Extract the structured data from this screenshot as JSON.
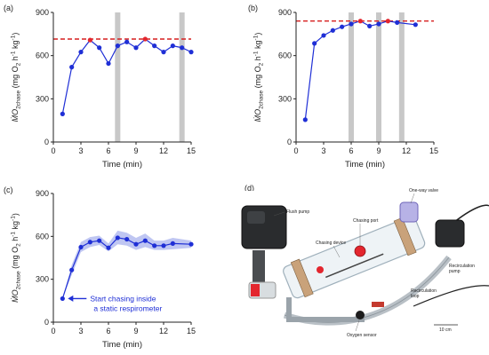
{
  "chart_data": [
    {
      "panel_label": "(a)",
      "type": "line",
      "xlabel": "Time (min)",
      "ylabel_main": "ṀO",
      "ylabel_sub": "2chase",
      "ylabel_units_1": " (mg O",
      "ylabel_units_sub": "2",
      "ylabel_units_2": " h",
      "ylabel_units_sup1": "-1",
      "ylabel_units_3": " kg",
      "ylabel_units_sup2": "-1",
      "ylabel_units_4": ")",
      "xlim": [
        0,
        15
      ],
      "ylim": [
        0,
        900
      ],
      "xticks": [
        0,
        3,
        6,
        9,
        12,
        15
      ],
      "yticks": [
        0,
        300,
        600,
        900
      ],
      "x_tick_labels": [
        "0",
        "3",
        "6",
        "9",
        "12",
        "15"
      ],
      "y_tick_labels": [
        "0",
        "300",
        "600",
        "900"
      ],
      "line_color": "#1f2fd6",
      "peak_color": "#e3262e",
      "shade_color": "#c8c8c8",
      "ref_line": 715,
      "shaded_x": [
        7,
        14
      ],
      "series": [
        {
          "x": [
            1,
            2,
            3,
            4,
            5,
            6,
            7,
            8,
            9,
            10,
            11,
            12,
            13,
            14,
            15
          ],
          "y": [
            195,
            520,
            625,
            708,
            655,
            545,
            668,
            695,
            655,
            715,
            668,
            625,
            668,
            655,
            625
          ],
          "peak_index": [
            3,
            9
          ]
        }
      ]
    },
    {
      "panel_label": "(b)",
      "type": "line",
      "xlabel": "Time (min)",
      "ylabel_main": "ṀO",
      "ylabel_sub": "2chase",
      "ylabel_units_1": " (mg O",
      "ylabel_units_sub": "2",
      "ylabel_units_2": " h",
      "ylabel_units_sup1": "-1",
      "ylabel_units_3": " kg",
      "ylabel_units_sup2": "-1",
      "ylabel_units_4": ")",
      "xlim": [
        0,
        15
      ],
      "ylim": [
        0,
        900
      ],
      "xticks": [
        0,
        3,
        6,
        9,
        12,
        15
      ],
      "yticks": [
        0,
        300,
        600,
        900
      ],
      "x_tick_labels": [
        "0",
        "3",
        "6",
        "9",
        "12",
        "15"
      ],
      "y_tick_labels": [
        "0",
        "300",
        "600",
        "900"
      ],
      "line_color": "#1f2fd6",
      "peak_color": "#e3262e",
      "shade_color": "#c8c8c8",
      "ref_line": 840,
      "shaded_x": [
        6,
        9,
        11.5
      ],
      "series": [
        {
          "x": [
            1,
            2,
            3,
            4,
            5,
            6,
            7,
            8,
            9,
            10,
            11,
            13
          ],
          "y": [
            155,
            685,
            740,
            775,
            800,
            820,
            840,
            805,
            820,
            840,
            830,
            815
          ],
          "peak_index": [
            6,
            9
          ]
        }
      ]
    },
    {
      "panel_label": "(c)",
      "type": "line",
      "xlabel": "Time (min)",
      "ylabel_main": "ṀO",
      "ylabel_sub": "2chase",
      "ylabel_units_1": " (mg O",
      "ylabel_units_sub": "2",
      "ylabel_units_2": " h",
      "ylabel_units_sup1": "-1",
      "ylabel_units_3": " kg",
      "ylabel_units_sup2": "-1",
      "ylabel_units_4": ")",
      "xlim": [
        0,
        15
      ],
      "ylim": [
        0,
        900
      ],
      "xticks": [
        0,
        3,
        6,
        9,
        12,
        15
      ],
      "yticks": [
        0,
        300,
        600,
        900
      ],
      "x_tick_labels": [
        "0",
        "3",
        "6",
        "9",
        "12",
        "15"
      ],
      "y_tick_labels": [
        "0",
        "300",
        "600",
        "900"
      ],
      "line_color": "#1f2fd6",
      "band_color": "#aab3ee",
      "annotation_line1": "Start chasing inside",
      "annotation_line2": "a static respirometer",
      "series": [
        {
          "x": [
            1,
            2,
            3,
            4,
            5,
            6,
            7,
            8,
            9,
            10,
            11,
            12,
            13,
            15
          ],
          "y": [
            165,
            365,
            525,
            560,
            570,
            520,
            590,
            580,
            545,
            570,
            535,
            535,
            550,
            545
          ],
          "lower": [
            165,
            330,
            490,
            525,
            540,
            495,
            545,
            535,
            505,
            525,
            505,
            505,
            510,
            520
          ],
          "upper": [
            165,
            400,
            560,
            595,
            605,
            550,
            640,
            625,
            590,
            620,
            570,
            570,
            590,
            570
          ]
        }
      ]
    }
  ],
  "photo": {
    "panel_label": "(d)",
    "labels": {
      "flush_pump": "Flush pump",
      "one_way_valve": "One-way valve",
      "chasing_port": "Chasing port",
      "chasing_device": "Chasing device",
      "recirculation_pump": "Recirculation pump",
      "recirculation_loop": "Recirculation loop",
      "oxygen_sensor": "Oxygen sensor",
      "scale_bar": "10 cm"
    }
  }
}
